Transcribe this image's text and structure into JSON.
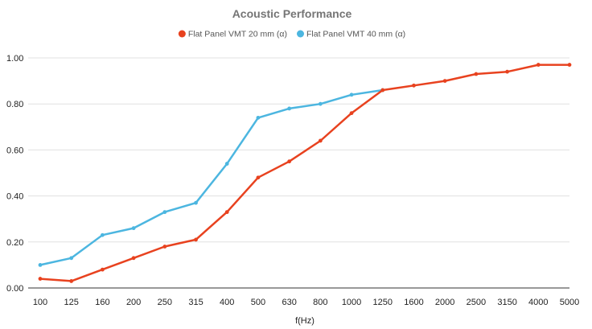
{
  "chart_data": {
    "type": "line",
    "title": "Acoustic Performance",
    "xlabel": "f(Hz)",
    "ylabel": "",
    "categories": [
      "100",
      "125",
      "160",
      "200",
      "250",
      "315",
      "400",
      "500",
      "630",
      "800",
      "1000",
      "1250",
      "1600",
      "2000",
      "2500",
      "3150",
      "4000",
      "5000"
    ],
    "ylim": [
      0,
      1.0
    ],
    "yticks": [
      "0.00",
      "0.20",
      "0.40",
      "0.60",
      "0.80",
      "1.00"
    ],
    "grid": true,
    "legend_position": "top",
    "series": [
      {
        "name": "Flat Panel VMT 20 mm (α)",
        "color": "#e8421f",
        "values": [
          0.04,
          0.03,
          0.08,
          0.13,
          0.18,
          0.21,
          0.33,
          0.48,
          0.55,
          0.64,
          0.76,
          0.86,
          0.88,
          0.9,
          0.93,
          0.94,
          0.97,
          0.97
        ]
      },
      {
        "name": "Flat Panel VMT 40 mm (α)",
        "color": "#4cb6e0",
        "values": [
          0.1,
          0.13,
          0.23,
          0.26,
          0.33,
          0.37,
          0.54,
          0.74,
          0.78,
          0.8,
          0.84,
          0.86,
          null,
          null,
          null,
          null,
          null,
          null
        ]
      }
    ]
  }
}
